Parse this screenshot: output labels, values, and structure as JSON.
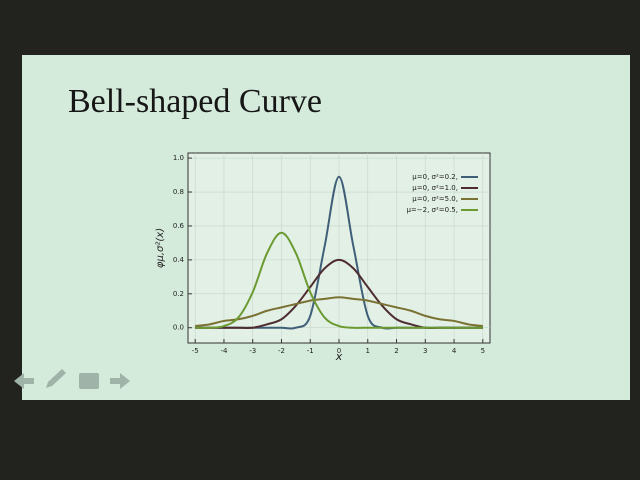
{
  "chart_data": {
    "type": "line",
    "title": "Bell-shaped Curve",
    "x_label": "x",
    "y_label": "φμ,σ²(x)",
    "x": [
      -5,
      -4.5,
      -4,
      -3.5,
      -3,
      -2.5,
      -2,
      -1.5,
      -1,
      -0.5,
      0,
      0.5,
      1,
      1.5,
      2,
      2.5,
      3,
      3.5,
      4,
      4.5,
      5
    ],
    "series": [
      {
        "name": "μ=0,   σ²=0.2,",
        "color": "#3f5f78",
        "values": [
          0,
          0,
          0,
          0,
          0,
          0,
          0,
          0,
          0.07,
          0.48,
          0.89,
          0.48,
          0.07,
          0,
          0,
          0,
          0,
          0,
          0,
          0,
          0
        ]
      },
      {
        "name": "μ=0,   σ²=1.0,",
        "color": "#4e2c30",
        "values": [
          0,
          0,
          0,
          0,
          0,
          0.02,
          0.05,
          0.13,
          0.24,
          0.35,
          0.4,
          0.35,
          0.24,
          0.13,
          0.05,
          0.02,
          0,
          0,
          0,
          0,
          0
        ]
      },
      {
        "name": "μ=0,   σ²=5.0,",
        "color": "#7a7232",
        "values": [
          0.01,
          0.02,
          0.04,
          0.05,
          0.07,
          0.1,
          0.12,
          0.14,
          0.16,
          0.17,
          0.18,
          0.17,
          0.16,
          0.14,
          0.12,
          0.1,
          0.07,
          0.05,
          0.04,
          0.02,
          0.01
        ]
      },
      {
        "name": "μ=−2, σ²=0.5,",
        "color": "#6b9a30",
        "values": [
          0,
          0,
          0.01,
          0.06,
          0.21,
          0.44,
          0.56,
          0.44,
          0.21,
          0.06,
          0.01,
          0,
          0,
          0,
          0,
          0,
          0,
          0,
          0,
          0,
          0
        ]
      }
    ],
    "xlim": [
      -5.25,
      5.25
    ],
    "ylim": [
      -0.09,
      1.03
    ],
    "xticks": [
      -5,
      -4,
      -3,
      -2,
      -1,
      0,
      1,
      2,
      3,
      4,
      5
    ],
    "yticks": [
      {
        "value": 0,
        "label": "0.0"
      },
      0.2,
      0.4,
      0.6,
      0.8,
      {
        "value": 1,
        "label": "1.0"
      }
    ],
    "grid": true,
    "legend": "upper right"
  }
}
